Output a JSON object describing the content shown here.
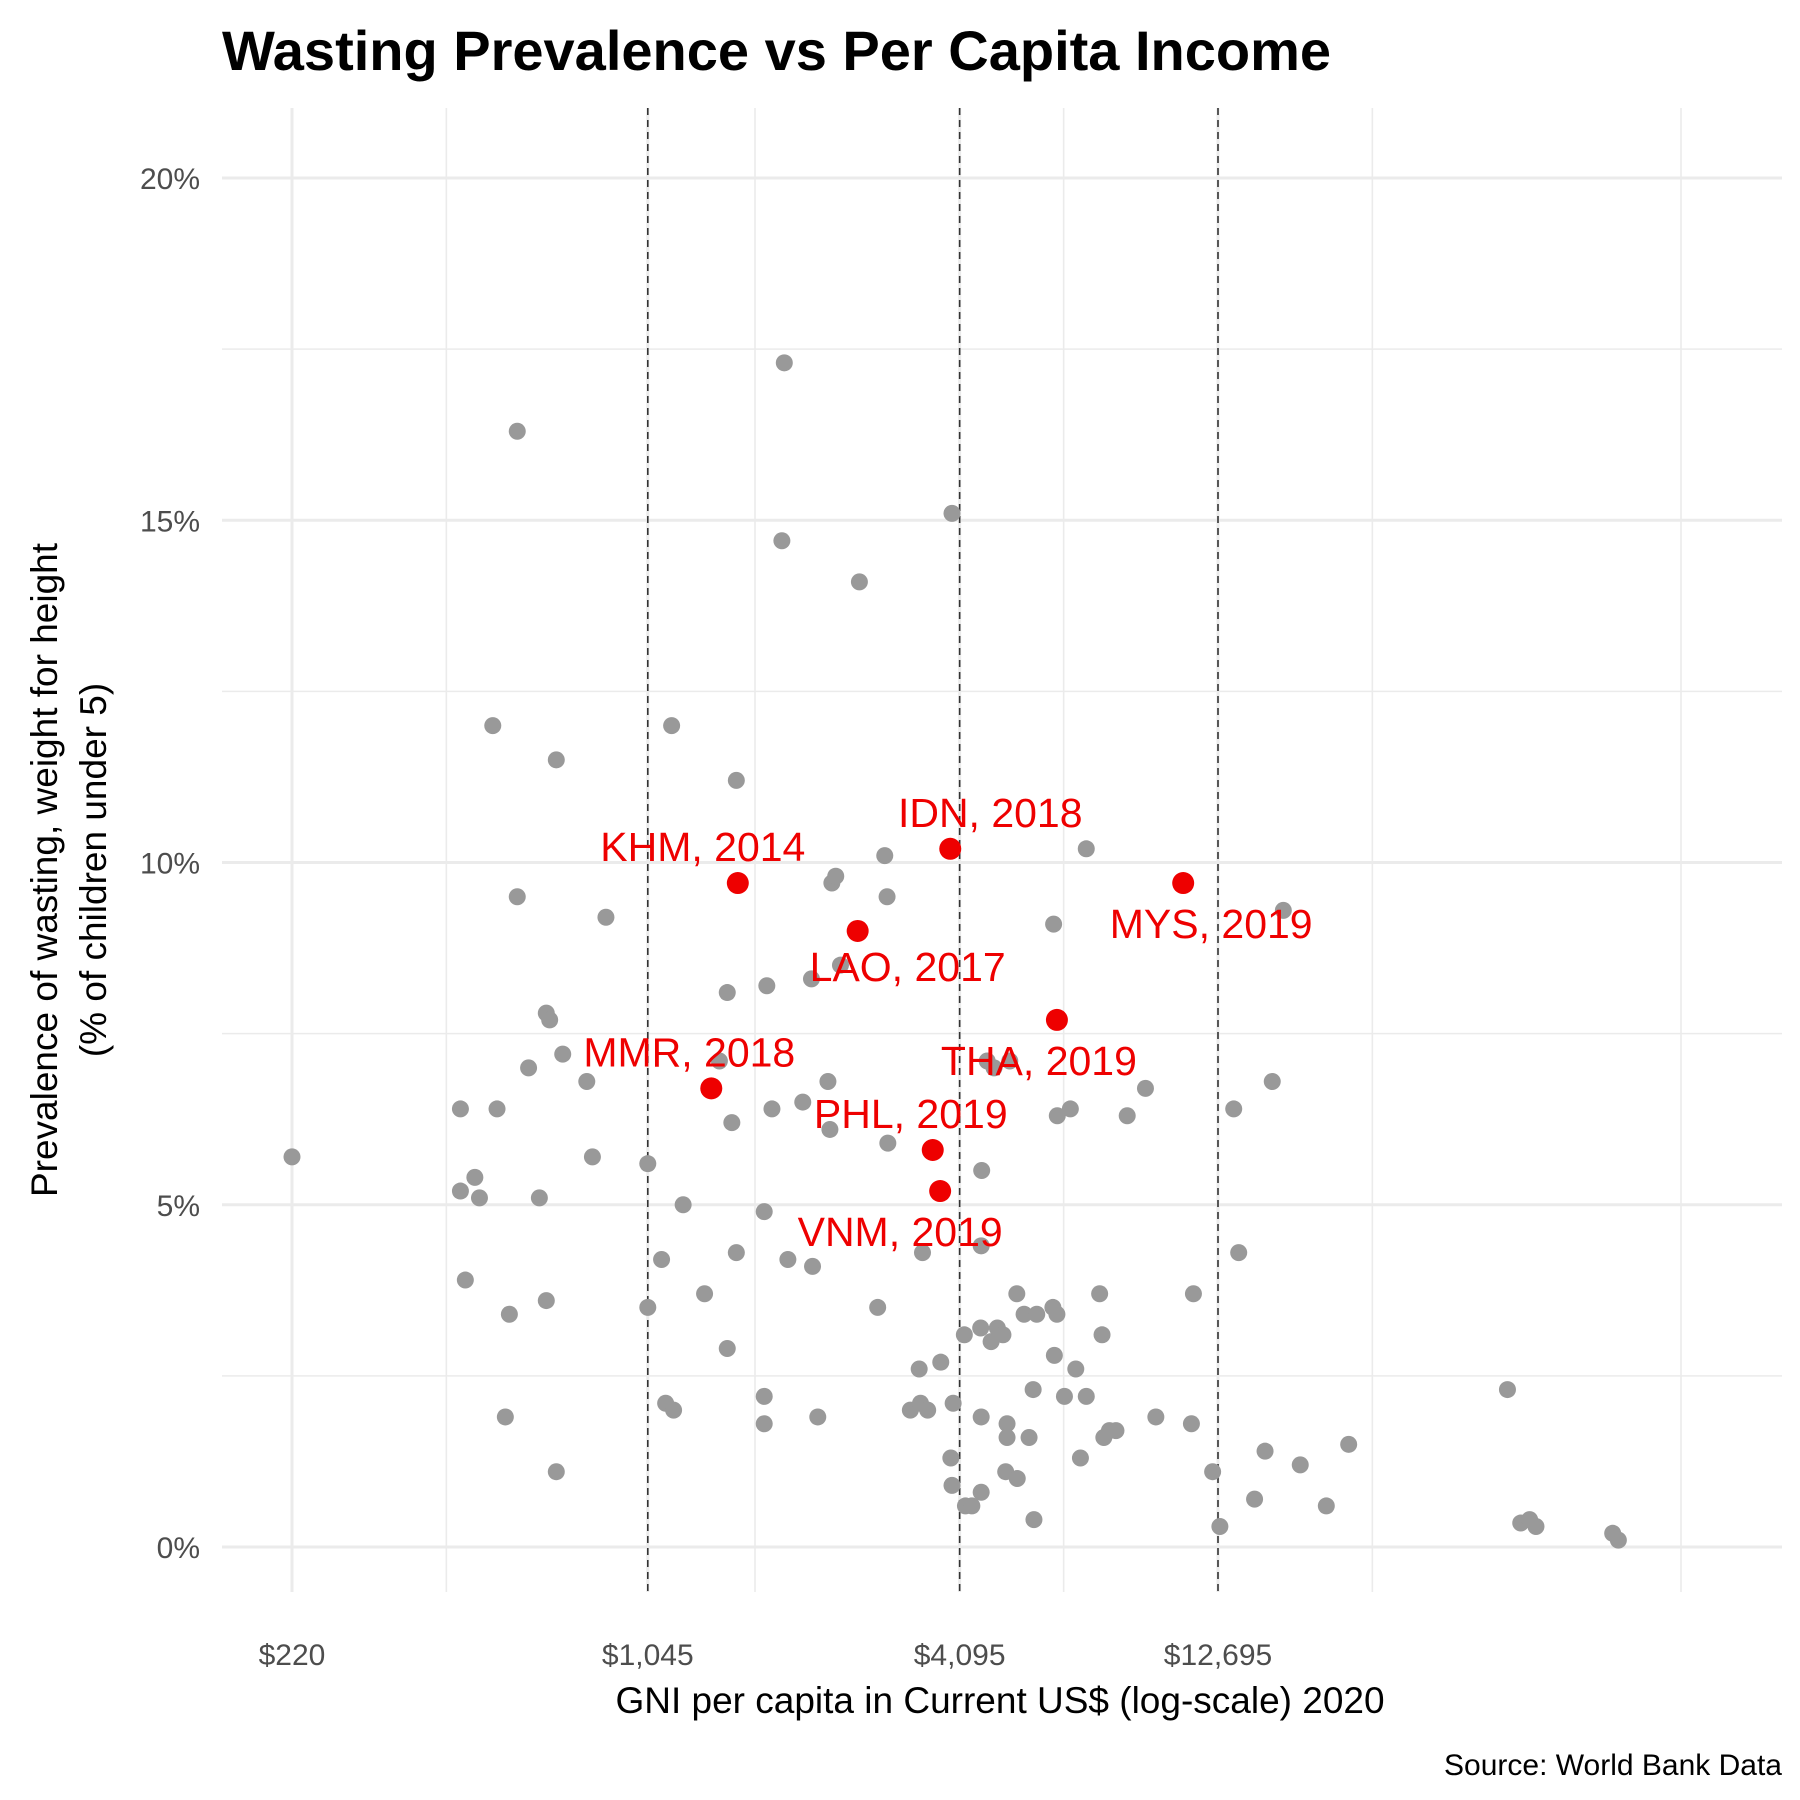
{
  "chart_data": {
    "type": "scatter",
    "title": "Wasting Prevalence vs Per Capita Income",
    "xlabel": "GNI per capita in Current US$ (log-scale) 2020",
    "ylabel_line1": "Prevalence of wasting, weight for height",
    "ylabel_line2": "(% of children under 5)",
    "caption": "Source: World Bank Data",
    "x_scale": "log",
    "xlim": [
      160,
      200000
    ],
    "ylim": [
      -0.5,
      21
    ],
    "x_ticks": [
      220,
      1045,
      4095,
      12695
    ],
    "x_tick_labels": [
      "$220",
      "$1,045",
      "$4,095",
      "$12,695"
    ],
    "y_ticks": [
      0,
      5,
      10,
      15,
      20
    ],
    "y_tick_labels": [
      "0%",
      "5%",
      "10%",
      "15%",
      "20%"
    ],
    "vlines": [
      1045,
      4095,
      12695
    ],
    "grid": true,
    "colors": {
      "points": "#999999",
      "highlight": "#ee0000",
      "grid": "#ebebeb",
      "vline": "#333333"
    },
    "points": [
      {
        "x": 220,
        "y": 5.7
      },
      {
        "x": 460,
        "y": 6.4
      },
      {
        "x": 470,
        "y": 3.9
      },
      {
        "x": 460,
        "y": 5.2
      },
      {
        "x": 490,
        "y": 5.4
      },
      {
        "x": 500,
        "y": 5.1
      },
      {
        "x": 530,
        "y": 12.0
      },
      {
        "x": 540,
        "y": 6.4
      },
      {
        "x": 560,
        "y": 1.9
      },
      {
        "x": 570,
        "y": 3.4
      },
      {
        "x": 590,
        "y": 16.3
      },
      {
        "x": 590,
        "y": 9.5
      },
      {
        "x": 620,
        "y": 7.0
      },
      {
        "x": 650,
        "y": 5.1
      },
      {
        "x": 670,
        "y": 7.8
      },
      {
        "x": 680,
        "y": 7.7
      },
      {
        "x": 670,
        "y": 3.6
      },
      {
        "x": 700,
        "y": 11.5
      },
      {
        "x": 700,
        "y": 1.1
      },
      {
        "x": 720,
        "y": 7.2
      },
      {
        "x": 800,
        "y": 6.8
      },
      {
        "x": 820,
        "y": 5.7
      },
      {
        "x": 870,
        "y": 9.2
      },
      {
        "x": 1045,
        "y": 5.6
      },
      {
        "x": 1045,
        "y": 3.5
      },
      {
        "x": 1110,
        "y": 4.2
      },
      {
        "x": 1130,
        "y": 2.1
      },
      {
        "x": 1160,
        "y": 12.0
      },
      {
        "x": 1170,
        "y": 2.0
      },
      {
        "x": 1220,
        "y": 5.0
      },
      {
        "x": 1340,
        "y": 3.7
      },
      {
        "x": 1430,
        "y": 7.1
      },
      {
        "x": 1480,
        "y": 8.1
      },
      {
        "x": 1480,
        "y": 2.9
      },
      {
        "x": 1510,
        "y": 6.2
      },
      {
        "x": 1540,
        "y": 11.2
      },
      {
        "x": 1540,
        "y": 4.3
      },
      {
        "x": 1740,
        "y": 4.9
      },
      {
        "x": 1740,
        "y": 2.2
      },
      {
        "x": 1740,
        "y": 1.8
      },
      {
        "x": 1760,
        "y": 8.2
      },
      {
        "x": 1800,
        "y": 6.4
      },
      {
        "x": 1900,
        "y": 17.3
      },
      {
        "x": 1880,
        "y": 14.7
      },
      {
        "x": 1930,
        "y": 4.2
      },
      {
        "x": 2060,
        "y": 6.5
      },
      {
        "x": 2140,
        "y": 8.3
      },
      {
        "x": 2150,
        "y": 4.1
      },
      {
        "x": 2200,
        "y": 1.9
      },
      {
        "x": 2300,
        "y": 6.8
      },
      {
        "x": 2320,
        "y": 6.1
      },
      {
        "x": 2340,
        "y": 9.7
      },
      {
        "x": 2380,
        "y": 9.8
      },
      {
        "x": 2430,
        "y": 8.5
      },
      {
        "x": 2640,
        "y": 14.1
      },
      {
        "x": 2860,
        "y": 3.5
      },
      {
        "x": 2950,
        "y": 10.1
      },
      {
        "x": 2980,
        "y": 9.5
      },
      {
        "x": 2990,
        "y": 5.9
      },
      {
        "x": 3300,
        "y": 2.0
      },
      {
        "x": 3450,
        "y": 2.1
      },
      {
        "x": 3430,
        "y": 2.6
      },
      {
        "x": 3480,
        "y": 4.3
      },
      {
        "x": 3560,
        "y": 2.0
      },
      {
        "x": 3770,
        "y": 2.7
      },
      {
        "x": 3940,
        "y": 1.3
      },
      {
        "x": 3960,
        "y": 0.9
      },
      {
        "x": 3980,
        "y": 2.1
      },
      {
        "x": 3960,
        "y": 15.1
      },
      {
        "x": 4180,
        "y": 3.1
      },
      {
        "x": 4200,
        "y": 0.6
      },
      {
        "x": 4320,
        "y": 0.6
      },
      {
        "x": 4510,
        "y": 5.5
      },
      {
        "x": 4500,
        "y": 4.4
      },
      {
        "x": 4490,
        "y": 3.2
      },
      {
        "x": 4500,
        "y": 1.9
      },
      {
        "x": 4500,
        "y": 0.8
      },
      {
        "x": 4620,
        "y": 7.1
      },
      {
        "x": 4700,
        "y": 3.0
      },
      {
        "x": 4760,
        "y": 7.0
      },
      {
        "x": 4830,
        "y": 3.2
      },
      {
        "x": 4950,
        "y": 3.1
      },
      {
        "x": 5040,
        "y": 1.8
      },
      {
        "x": 5040,
        "y": 1.6
      },
      {
        "x": 5010,
        "y": 1.1
      },
      {
        "x": 5100,
        "y": 7.1
      },
      {
        "x": 5260,
        "y": 3.7
      },
      {
        "x": 5270,
        "y": 1.0
      },
      {
        "x": 5430,
        "y": 3.4
      },
      {
        "x": 5550,
        "y": 1.6
      },
      {
        "x": 5670,
        "y": 0.4
      },
      {
        "x": 5650,
        "y": 2.3
      },
      {
        "x": 5740,
        "y": 3.4
      },
      {
        "x": 6160,
        "y": 3.5
      },
      {
        "x": 6200,
        "y": 2.8
      },
      {
        "x": 6270,
        "y": 3.4
      },
      {
        "x": 6280,
        "y": 6.3
      },
      {
        "x": 6180,
        "y": 9.1
      },
      {
        "x": 6480,
        "y": 2.2
      },
      {
        "x": 6650,
        "y": 6.4
      },
      {
        "x": 6810,
        "y": 2.6
      },
      {
        "x": 6950,
        "y": 1.3
      },
      {
        "x": 7130,
        "y": 10.2
      },
      {
        "x": 7130,
        "y": 2.2
      },
      {
        "x": 7560,
        "y": 3.7
      },
      {
        "x": 7640,
        "y": 3.1
      },
      {
        "x": 7700,
        "y": 1.6
      },
      {
        "x": 7890,
        "y": 1.7
      },
      {
        "x": 8120,
        "y": 1.7
      },
      {
        "x": 8530,
        "y": 6.3
      },
      {
        "x": 9240,
        "y": 6.7
      },
      {
        "x": 9670,
        "y": 1.9
      },
      {
        "x": 11300,
        "y": 1.8
      },
      {
        "x": 11400,
        "y": 3.7
      },
      {
        "x": 12400,
        "y": 1.1
      },
      {
        "x": 12800,
        "y": 0.3
      },
      {
        "x": 13600,
        "y": 6.4
      },
      {
        "x": 13900,
        "y": 4.3
      },
      {
        "x": 14900,
        "y": 0.7
      },
      {
        "x": 15600,
        "y": 1.4
      },
      {
        "x": 16100,
        "y": 6.8
      },
      {
        "x": 16900,
        "y": 9.3
      },
      {
        "x": 18200,
        "y": 1.2
      },
      {
        "x": 20400,
        "y": 0.6
      },
      {
        "x": 22500,
        "y": 1.5
      },
      {
        "x": 45100,
        "y": 2.3
      },
      {
        "x": 47800,
        "y": 0.35
      },
      {
        "x": 49700,
        "y": 0.4
      },
      {
        "x": 51100,
        "y": 0.3
      },
      {
        "x": 71500,
        "y": 0.2
      },
      {
        "x": 73300,
        "y": 0.1
      }
    ],
    "highlights": [
      {
        "label": "IDN, 2018",
        "x": 3930,
        "y": 10.2
      },
      {
        "label": "KHM, 2014",
        "x": 1550,
        "y": 9.7
      },
      {
        "label": "MYS, 2019",
        "x": 10900,
        "y": 9.7
      },
      {
        "label": "LAO, 2017",
        "x": 2620,
        "y": 9.0
      },
      {
        "label": "THA, 2019",
        "x": 6270,
        "y": 7.7
      },
      {
        "label": "MMR, 2018",
        "x": 1380,
        "y": 6.7
      },
      {
        "label": "PHL, 2019",
        "x": 3640,
        "y": 5.8
      },
      {
        "label": "VNM, 2019",
        "x": 3760,
        "y": 5.2
      }
    ]
  }
}
